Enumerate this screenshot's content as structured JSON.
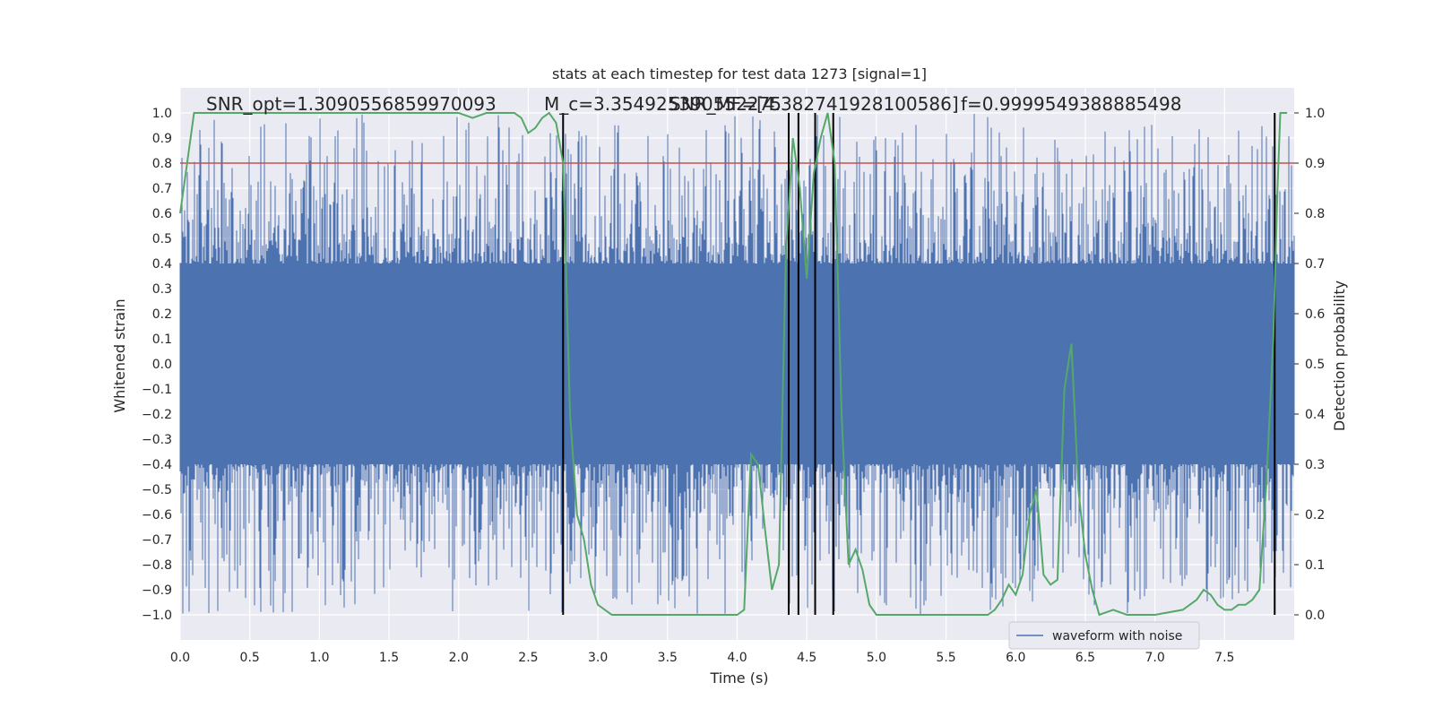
{
  "chart_data": {
    "type": "line",
    "title": "stats at each timestep for test data 1273 [signal=1]",
    "xlabel": "Time (s)",
    "ylabel": "Whitened strain",
    "y2label": "Detection probability",
    "xlim": [
      0.0,
      8.0
    ],
    "ylim": [
      -1.1,
      1.1
    ],
    "y2lim": [
      -0.05,
      1.05
    ],
    "grid": true,
    "x_ticks": [
      "0.0",
      "0.5",
      "1.0",
      "1.5",
      "2.0",
      "2.5",
      "3.0",
      "3.5",
      "4.0",
      "4.5",
      "5.0",
      "5.5",
      "6.0",
      "6.5",
      "7.0",
      "7.5"
    ],
    "y_ticks": [
      "1.0",
      "0.9",
      "0.8",
      "0.7",
      "0.6",
      "0.5",
      "0.4",
      "0.3",
      "0.2",
      "0.1",
      "0.0",
      "−0.1",
      "−0.2",
      "−0.3",
      "−0.4",
      "−0.5",
      "−0.6",
      "−0.7",
      "−0.8",
      "−0.9",
      "−1.0"
    ],
    "y2_ticks": [
      "1.0",
      "0.9",
      "0.8",
      "0.7",
      "0.6",
      "0.5",
      "0.4",
      "0.3",
      "0.2",
      "0.1",
      "0.0"
    ],
    "annotations": [
      "SNR_opt=1.3090556859970093",
      "M_c=3.354925390552275",
      "SNR_MF=[4.382741928100586]",
      "f=0.9999549388885498"
    ],
    "legend": {
      "position": "lower-right",
      "entries": [
        "waveform with noise"
      ]
    },
    "series": [
      {
        "name": "waveform with noise",
        "kind": "noise-band",
        "color": "#4c72b0",
        "core_range": [
          -0.4,
          0.4
        ],
        "peak_range": [
          -1.0,
          1.0
        ]
      },
      {
        "kind": "threshold",
        "axis": "y2",
        "value": 0.9,
        "color": "#c44e52"
      },
      {
        "kind": "probability",
        "axis": "y2",
        "color": "#55a868",
        "x": [
          0.0,
          0.05,
          0.1,
          0.2,
          0.5,
          1.0,
          1.5,
          2.0,
          2.1,
          2.2,
          2.3,
          2.4,
          2.45,
          2.5,
          2.55,
          2.6,
          2.65,
          2.7,
          2.75,
          2.8,
          2.85,
          2.9,
          2.95,
          3.0,
          3.1,
          3.2,
          3.3,
          3.5,
          3.8,
          4.0,
          4.05,
          4.1,
          4.15,
          4.2,
          4.25,
          4.3,
          4.35,
          4.4,
          4.45,
          4.5,
          4.55,
          4.6,
          4.65,
          4.7,
          4.75,
          4.8,
          4.85,
          4.9,
          4.95,
          5.0,
          5.1,
          5.2,
          5.3,
          5.5,
          5.8,
          5.85,
          5.9,
          5.95,
          6.0,
          6.05,
          6.1,
          6.15,
          6.2,
          6.25,
          6.3,
          6.35,
          6.4,
          6.45,
          6.5,
          6.55,
          6.6,
          6.7,
          6.8,
          7.0,
          7.2,
          7.3,
          7.35,
          7.4,
          7.45,
          7.5,
          7.55,
          7.6,
          7.65,
          7.7,
          7.75,
          7.8,
          7.85,
          7.88,
          7.9,
          7.95
        ],
        "y": [
          0.8,
          0.9,
          1.0,
          1.0,
          1.0,
          1.0,
          1.0,
          1.0,
          0.99,
          1.0,
          1.0,
          1.0,
          0.99,
          0.96,
          0.97,
          0.99,
          1.0,
          0.98,
          0.9,
          0.4,
          0.2,
          0.15,
          0.06,
          0.02,
          0.0,
          0.0,
          0.0,
          0.0,
          0.0,
          0.0,
          0.01,
          0.32,
          0.3,
          0.17,
          0.05,
          0.1,
          0.72,
          0.95,
          0.85,
          0.67,
          0.88,
          0.95,
          1.0,
          0.9,
          0.4,
          0.1,
          0.13,
          0.09,
          0.02,
          0.0,
          0.0,
          0.0,
          0.0,
          0.0,
          0.0,
          0.01,
          0.03,
          0.06,
          0.04,
          0.08,
          0.2,
          0.25,
          0.08,
          0.06,
          0.07,
          0.45,
          0.54,
          0.25,
          0.12,
          0.05,
          0.0,
          0.01,
          0.0,
          0.0,
          0.01,
          0.03,
          0.05,
          0.04,
          0.02,
          0.01,
          0.01,
          0.02,
          0.02,
          0.03,
          0.05,
          0.26,
          0.55,
          0.85,
          1.0,
          1.0
        ]
      },
      {
        "kind": "vlines",
        "color": "#000000",
        "x": [
          2.75,
          4.37,
          4.44,
          4.56,
          4.69,
          7.86
        ]
      }
    ]
  }
}
